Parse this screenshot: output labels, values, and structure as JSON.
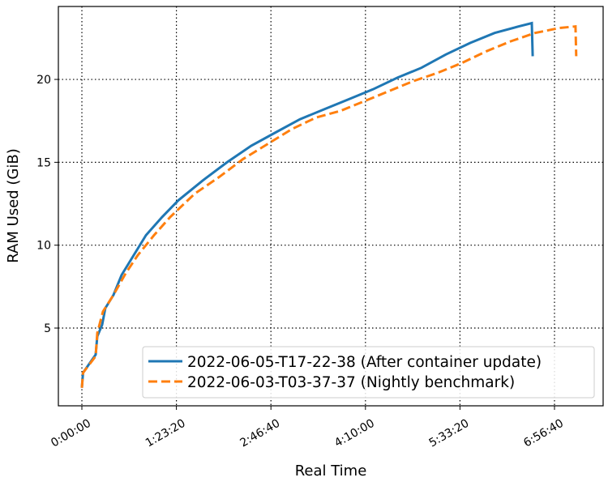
{
  "chart_data": {
    "type": "line",
    "xlabel": "Real Time",
    "ylabel": "RAM Used (GiB)",
    "xlim": [
      -1244,
      27573
    ],
    "ylim": [
      0.31,
      24.4
    ],
    "xticks": [
      {
        "value": 0,
        "label": "0:00:00"
      },
      {
        "value": 5000,
        "label": "1:23:20"
      },
      {
        "value": 10000,
        "label": "2:46:40"
      },
      {
        "value": 15000,
        "label": "4:10:00"
      },
      {
        "value": 20000,
        "label": "5:33:20"
      },
      {
        "value": 25000,
        "label": "6:56:40"
      }
    ],
    "yticks": [
      5,
      10,
      15,
      20
    ],
    "grid": true,
    "legend": "lower right",
    "series": [
      {
        "name": "2022-06-05-T17-22-38 (After container update)",
        "color": "#1f77b4",
        "style": "solid",
        "x": [
          0,
          60,
          730,
          815,
          1070,
          1240,
          1670,
          2100,
          2745,
          3390,
          4245,
          5100,
          6390,
          7675,
          8960,
          10250,
          11535,
          12820,
          14110,
          15395,
          16680,
          17960,
          19250,
          20540,
          21830,
          23115,
          23800,
          23845
        ],
        "values": [
          1.4,
          2.3,
          3.4,
          4.5,
          5.2,
          6.2,
          7.0,
          8.2,
          9.4,
          10.6,
          11.7,
          12.7,
          13.9,
          15.0,
          16.0,
          16.8,
          17.6,
          18.2,
          18.8,
          19.4,
          20.1,
          20.7,
          21.5,
          22.2,
          22.8,
          23.2,
          23.4,
          21.4
        ]
      },
      {
        "name": "2022-06-03-T03-37-37 (Nightly benchmark)",
        "color": "#ff7f0e",
        "style": "dashed",
        "x": [
          0,
          60,
          730,
          815,
          1115,
          1670,
          2315,
          2960,
          3815,
          4675,
          5960,
          7245,
          8530,
          9820,
          11105,
          12390,
          13680,
          14965,
          16250,
          17540,
          18825,
          20115,
          21400,
          22685,
          23970,
          25250,
          26110,
          26150
        ],
        "values": [
          1.4,
          2.3,
          3.3,
          4.7,
          6.0,
          7.0,
          8.3,
          9.4,
          10.6,
          11.7,
          13.1,
          14.1,
          15.2,
          16.1,
          17.0,
          17.7,
          18.1,
          18.7,
          19.3,
          19.9,
          20.4,
          21.0,
          21.7,
          22.3,
          22.8,
          23.1,
          23.2,
          21.4
        ]
      }
    ]
  }
}
